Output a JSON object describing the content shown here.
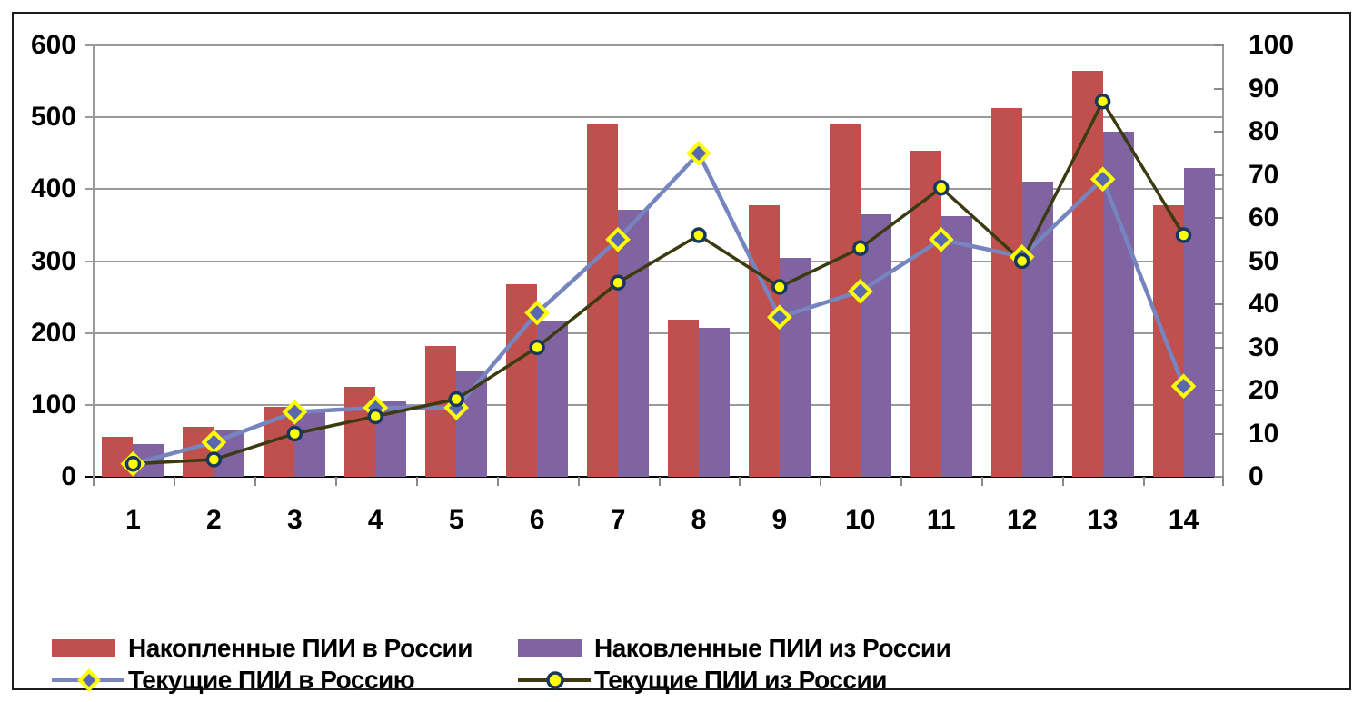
{
  "chart_data": {
    "type": "bar",
    "subtype": "combo-bar-line-dual-axis",
    "title": "",
    "xlabel": "",
    "ylabel_left": "",
    "ylabel_right": "",
    "grid": true,
    "legend_position": "bottom-left",
    "categories": [
      "1",
      "2",
      "3",
      "4",
      "5",
      "6",
      "7",
      "8",
      "9",
      "10",
      "11",
      "12",
      "13",
      "14"
    ],
    "left_axis": {
      "min": 0,
      "max": 600,
      "step": 100,
      "tick_labels": [
        "0",
        "100",
        "200",
        "300",
        "400",
        "500",
        "600"
      ]
    },
    "right_axis": {
      "min": 0,
      "max": 100,
      "step": 10,
      "tick_labels": [
        "0",
        "10",
        "20",
        "30",
        "40",
        "50",
        "60",
        "70",
        "80",
        "90",
        "100"
      ]
    },
    "series": [
      {
        "name": "Накопленные ПИИ в России",
        "type": "bar",
        "axis": "left",
        "color": "#c0504d",
        "values": [
          55,
          70,
          97,
          125,
          182,
          268,
          490,
          218,
          378,
          490,
          453,
          513,
          565,
          378
        ]
      },
      {
        "name": "Наковленные ПИИ из России",
        "type": "bar",
        "axis": "left",
        "color": "#8064a2",
        "values": [
          45,
          65,
          92,
          105,
          147,
          217,
          372,
          207,
          305,
          365,
          362,
          410,
          480,
          430
        ]
      },
      {
        "name": "Текущие ПИИ в Россию",
        "type": "line",
        "axis": "right",
        "color": "#7684bf",
        "marker": "diamond",
        "marker_fill": "#5a68b0",
        "marker_stroke": "#ffff00",
        "marker_edge": "#17375e",
        "values": [
          3,
          8,
          15,
          16,
          16,
          38,
          55,
          75,
          37,
          43,
          55,
          51,
          69,
          21
        ]
      },
      {
        "name": "Текущие ПИИ из России",
        "type": "line",
        "axis": "right",
        "color": "#3b3a10",
        "marker": "circle",
        "marker_fill": "#ffff00",
        "marker_stroke": "#17375e",
        "values": [
          3,
          4,
          10,
          14,
          18,
          30,
          45,
          56,
          44,
          53,
          67,
          50,
          87,
          56
        ]
      }
    ],
    "colors": {
      "gridline": "#9a9a9a",
      "axis_line": "#000000",
      "background": "#ffffff"
    }
  }
}
